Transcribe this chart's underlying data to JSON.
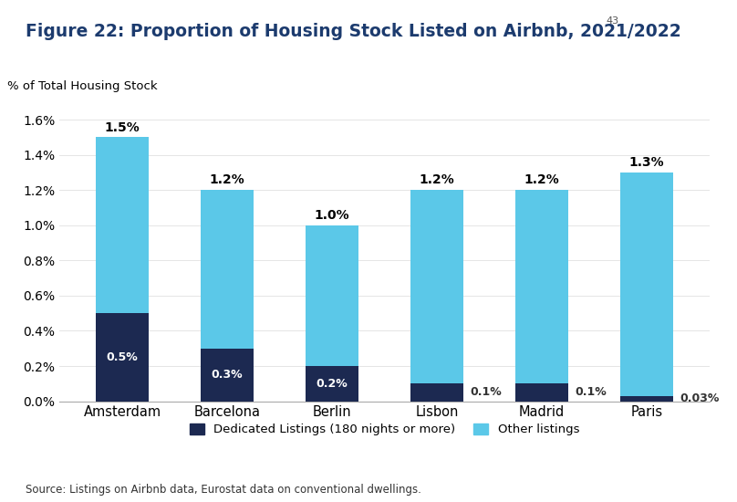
{
  "title": "Figure 22: Proportion of Housing Stock Listed on Airbnb, 2021/2022",
  "title_superscript": "43",
  "ylabel": "% of Total Housing Stock",
  "source": "Source: Listings on Airbnb data, Eurostat data on conventional dwellings.",
  "categories": [
    "Amsterdam",
    "Barcelona",
    "Berlin",
    "Lisbon",
    "Madrid",
    "Paris"
  ],
  "dedicated": [
    0.5,
    0.3,
    0.2,
    0.1,
    0.1,
    0.03
  ],
  "other": [
    1.0,
    0.9,
    0.8,
    1.1,
    1.1,
    1.27
  ],
  "totals": [
    1.5,
    1.2,
    1.0,
    1.2,
    1.2,
    1.3
  ],
  "dedicated_labels": [
    "0.5%",
    "0.3%",
    "0.2%",
    "0.1%",
    "0.1%",
    "0.03%"
  ],
  "total_labels": [
    "1.5%",
    "1.2%",
    "1.0%",
    "1.2%",
    "1.2%",
    "1.3%"
  ],
  "dedicated_color": "#1c2951",
  "other_color": "#5bc8e8",
  "bar_width": 0.5,
  "yticks": [
    0.0,
    0.2,
    0.4,
    0.6,
    0.8,
    1.0,
    1.2,
    1.4,
    1.6
  ],
  "ytick_labels": [
    "0.0%",
    "0.2%",
    "0.4%",
    "0.6%",
    "0.8%",
    "1.0%",
    "1.2%",
    "1.4%",
    "1.6%"
  ],
  "ylim_max": 1.72,
  "title_color": "#1c3b6e",
  "title_fontsize": 13.5,
  "legend_dedicated": "Dedicated Listings (180 nights or more)",
  "legend_other": "Other listings",
  "background_color": "#ffffff"
}
